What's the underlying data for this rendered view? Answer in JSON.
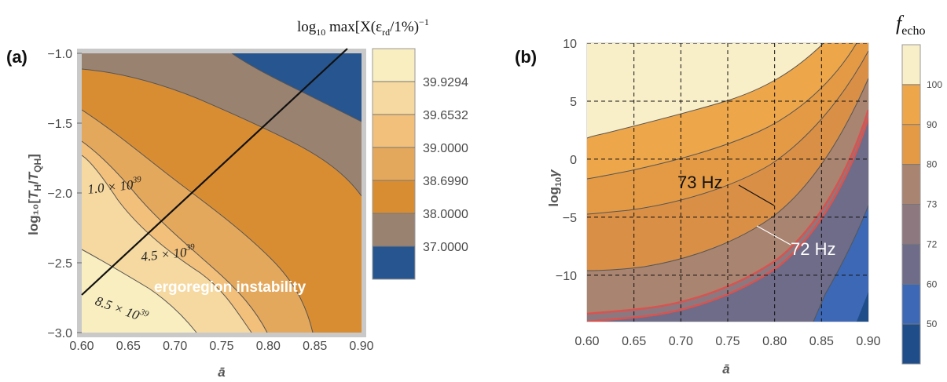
{
  "chart_data": [
    {
      "type": "contour",
      "panel": "(a)",
      "xlabel": "ā",
      "ylabel": "log₁₀[T_H/T_QH]",
      "xlim": [
        0.6,
        0.9
      ],
      "ylim": [
        -3.0,
        -1.0
      ],
      "xticks": [
        "0.60",
        "0.65",
        "0.70",
        "0.75",
        "0.80",
        "0.85",
        "0.90"
      ],
      "yticks": [
        "-1.0",
        "-1.5",
        "-2.0",
        "-2.5",
        "-3.0"
      ],
      "colorbar_title": "log₁₀ max[X(ε_rd/1%)⁻¹]",
      "colorbar_levels": [
        "39.9294",
        "39.6532",
        "39.0000",
        "38.6990",
        "38.0000",
        "37.0000"
      ],
      "colors": [
        "#f9eec0",
        "#f6d9a0",
        "#f2c07a",
        "#e4a85c",
        "#d98d33",
        "#9a8270",
        "#27558f"
      ],
      "annotations": [
        "1.0 × 10³⁹",
        "4.5 × 10³⁹",
        "8.5 × 10³⁹",
        "ergoregion instability"
      ]
    },
    {
      "type": "contour",
      "panel": "(b)",
      "xlabel": "ā",
      "ylabel": "log₁₀γ",
      "xlim": [
        0.6,
        0.9
      ],
      "ylim": [
        -14,
        10
      ],
      "xticks": [
        "0.60",
        "0.65",
        "0.70",
        "0.75",
        "0.80",
        "0.85",
        "0.90"
      ],
      "yticks": [
        "10",
        "5",
        "0",
        "-5",
        "-10"
      ],
      "grid": true,
      "colorbar_title": "f_echo",
      "colorbar_levels": [
        "100",
        "90",
        "80",
        "73",
        "72",
        "60",
        "50"
      ],
      "colors": [
        "#f8eec8",
        "#eda64a",
        "#e49a45",
        "#a98470",
        "#8d7880",
        "#6e6c88",
        "#3c68b6",
        "#1f4d8a"
      ],
      "annotations": [
        "73 Hz",
        "72 Hz"
      ]
    }
  ],
  "panel_a": {
    "tag": "(a)",
    "xlabel": "ā",
    "ylabel_main": "log₁₀[",
    "ylabel_tail": "]",
    "ylabel_T": "T",
    "ylabel_H": "H",
    "ylabel_slash": "/",
    "ylabel_QH": "QH",
    "cb_title_pre": "log",
    "cb_title_sub": "10",
    "cb_title_mid": " max[X(ε",
    "cb_title_rd": "rd",
    "cb_title_post": "/1%)",
    "cb_title_exp": "−1",
    "ann1_base": "1.0 × 10",
    "ann1_exp": "39",
    "ann2_base": "4.5 × 10",
    "ann2_exp": "39",
    "ann3_base": "8.5 × 10",
    "ann3_exp": "39",
    "ann4": "ergoregion instability"
  },
  "panel_b": {
    "tag": "(b)",
    "xlabel": "ā",
    "ylabel_pre": "log",
    "ylabel_sub": "10",
    "ylabel_sym": "γ",
    "cb_title_f": "f",
    "cb_title_sub": "echo",
    "ann1": "73 Hz",
    "ann2": "72 Hz"
  }
}
